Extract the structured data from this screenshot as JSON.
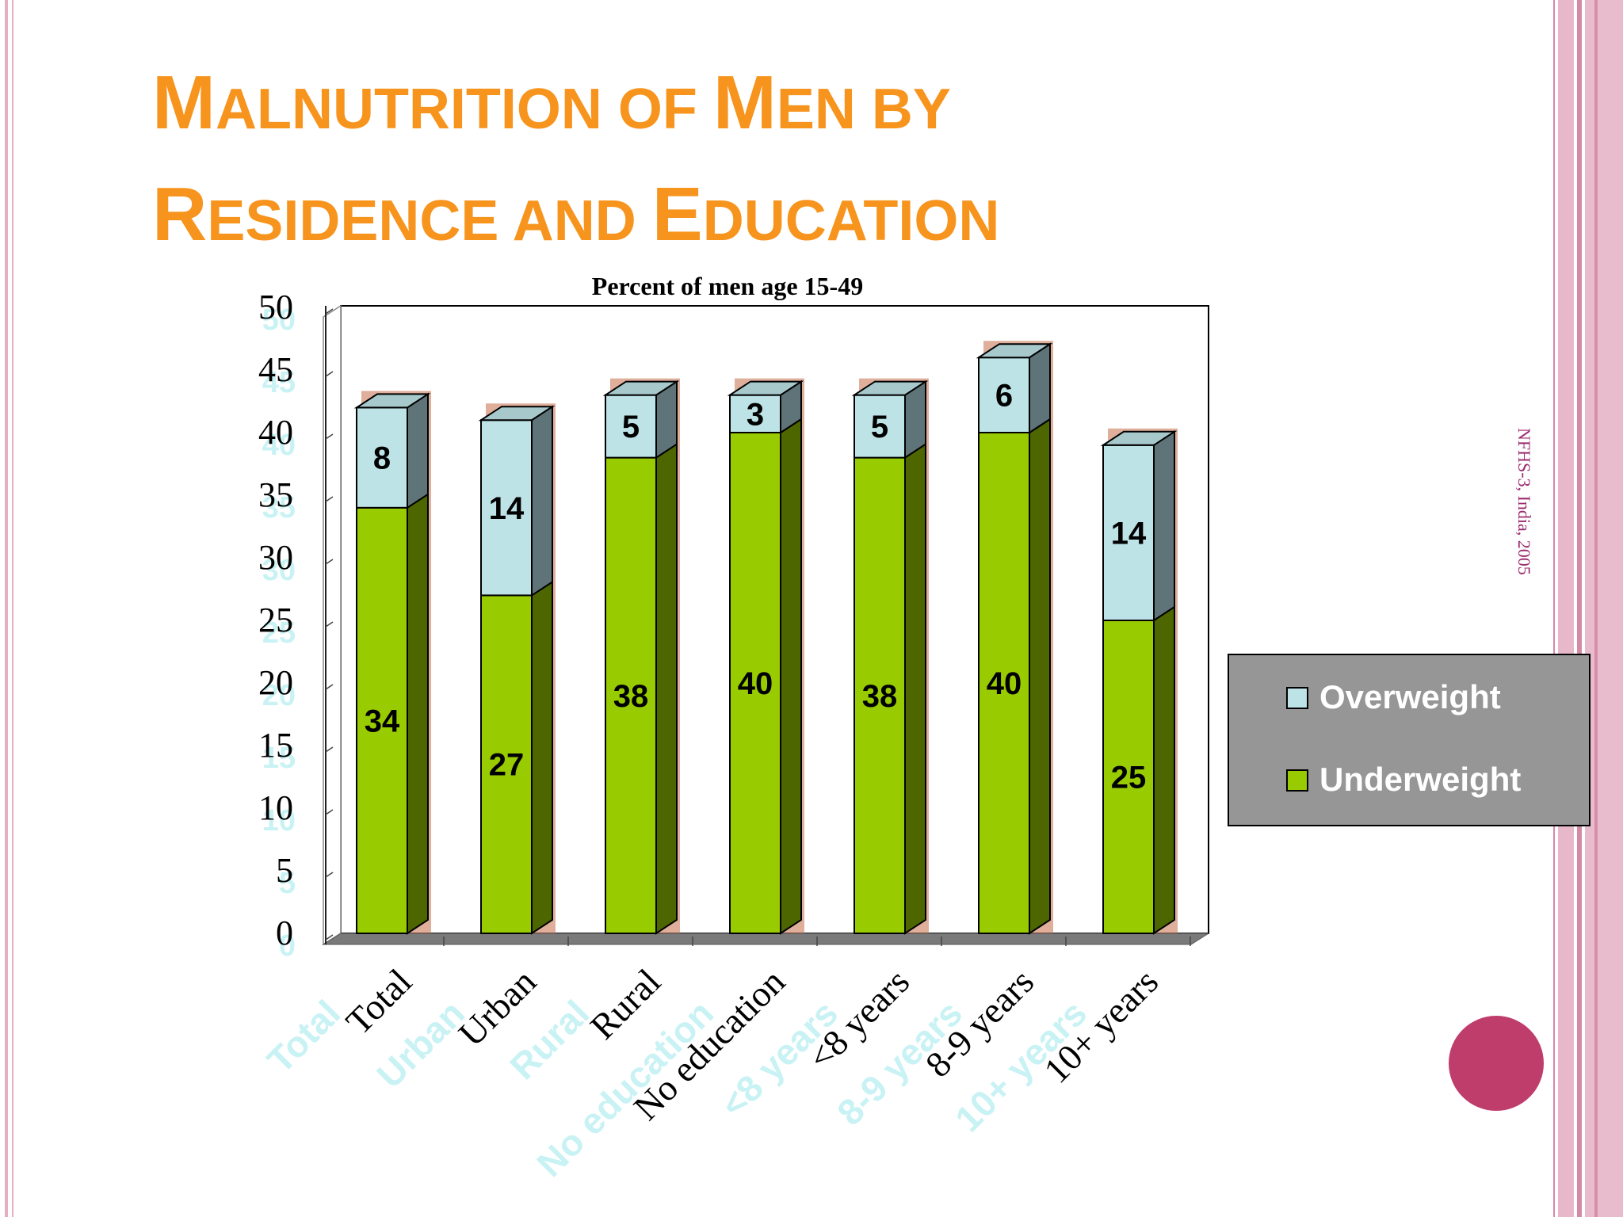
{
  "slide": {
    "title_line1_parts": [
      {
        "text": "M",
        "cap": true
      },
      {
        "text": "ALNUTRITION OF ",
        "cap": false
      },
      {
        "text": "M",
        "cap": true
      },
      {
        "text": "EN BY",
        "cap": false
      }
    ],
    "title_line2_parts": [
      {
        "text": "R",
        "cap": true
      },
      {
        "text": "ESIDENCE AND ",
        "cap": false
      },
      {
        "text": "E",
        "cap": true
      },
      {
        "text": "DUCATION",
        "cap": false
      }
    ],
    "source_note": "NFHS-3, India, 2005"
  },
  "colors": {
    "title": "#f7941d",
    "underweight": "#99cc00",
    "overweight": "#bde3e6",
    "legend_bg": "#969696",
    "ghost_label": "#c9f2f4"
  },
  "chart_data": {
    "type": "bar",
    "stacked": true,
    "three_d": true,
    "title": "Percent of men age 15-49",
    "categories": [
      "Total",
      "Urban",
      "Rural",
      "No education",
      "<8 years",
      "8-9 years",
      "10+ years"
    ],
    "series": [
      {
        "name": "Underweight",
        "values": [
          34,
          27,
          38,
          40,
          38,
          40,
          25
        ]
      },
      {
        "name": "Overweight",
        "values": [
          8,
          14,
          5,
          3,
          5,
          6,
          14
        ]
      }
    ],
    "ylim": [
      0,
      50
    ],
    "yticks": [
      "0",
      "5",
      "10",
      "15",
      "20",
      "25",
      "30",
      "35",
      "40",
      "45",
      "50"
    ],
    "legend_position": "right",
    "grid": false
  }
}
